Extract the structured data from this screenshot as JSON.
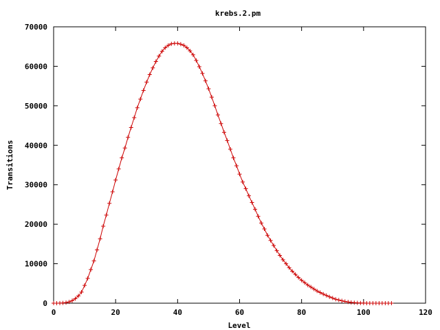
{
  "chart_data": {
    "type": "line",
    "title": "krebs.2.pm",
    "xlabel": "Level",
    "ylabel": "Transitions",
    "xlim": [
      0,
      120
    ],
    "ylim": [
      0,
      70000
    ],
    "xticks": [
      0,
      20,
      40,
      60,
      80,
      100,
      120
    ],
    "yticks": [
      0,
      10000,
      20000,
      30000,
      40000,
      50000,
      60000,
      70000
    ],
    "grid": false,
    "legend": "none",
    "line_color": "#cc0000",
    "marker": "plus",
    "series": [
      {
        "x": [
          0,
          1,
          2,
          3,
          4,
          5,
          6,
          7,
          8,
          9,
          10,
          11,
          12,
          13,
          14,
          15,
          16,
          17,
          18,
          19,
          20,
          21,
          22,
          23,
          24,
          25,
          26,
          27,
          28,
          29,
          30,
          31,
          32,
          33,
          34,
          35,
          36,
          37,
          38,
          39,
          40,
          41,
          42,
          43,
          44,
          45,
          46,
          47,
          48,
          49,
          50,
          51,
          52,
          53,
          54,
          55,
          56,
          57,
          58,
          59,
          60,
          61,
          62,
          63,
          64,
          65,
          66,
          67,
          68,
          69,
          70,
          71,
          72,
          73,
          74,
          75,
          76,
          77,
          78,
          79,
          80,
          81,
          82,
          83,
          84,
          85,
          86,
          87,
          88,
          89,
          90,
          91,
          92,
          93,
          94,
          95,
          96,
          97,
          98,
          99,
          100,
          101,
          102,
          103,
          104,
          105,
          106,
          107,
          108,
          109
        ],
        "y": [
          0,
          5,
          20,
          60,
          150,
          320,
          650,
          1150,
          1850,
          2800,
          4500,
          6300,
          8500,
          10700,
          13500,
          16300,
          19500,
          22300,
          25300,
          28200,
          31200,
          34000,
          36800,
          39300,
          42000,
          44500,
          47000,
          49500,
          51700,
          53900,
          56000,
          57900,
          59600,
          61200,
          62600,
          63800,
          64700,
          65300,
          65700,
          65800,
          65800,
          65600,
          65300,
          64700,
          63900,
          62900,
          61500,
          59900,
          58200,
          56300,
          54300,
          52200,
          50000,
          47700,
          45500,
          43300,
          41200,
          39000,
          36800,
          34800,
          32700,
          30700,
          29000,
          27200,
          25500,
          23800,
          22000,
          20300,
          18800,
          17200,
          15900,
          14600,
          13300,
          12100,
          11000,
          10000,
          9000,
          8100,
          7300,
          6500,
          5800,
          5200,
          4600,
          4100,
          3600,
          3100,
          2700,
          2300,
          1950,
          1600,
          1300,
          1000,
          800,
          600,
          430,
          300,
          200,
          130,
          80,
          45,
          20,
          10,
          5,
          2,
          1,
          0,
          0,
          0,
          0,
          0
        ]
      }
    ]
  }
}
